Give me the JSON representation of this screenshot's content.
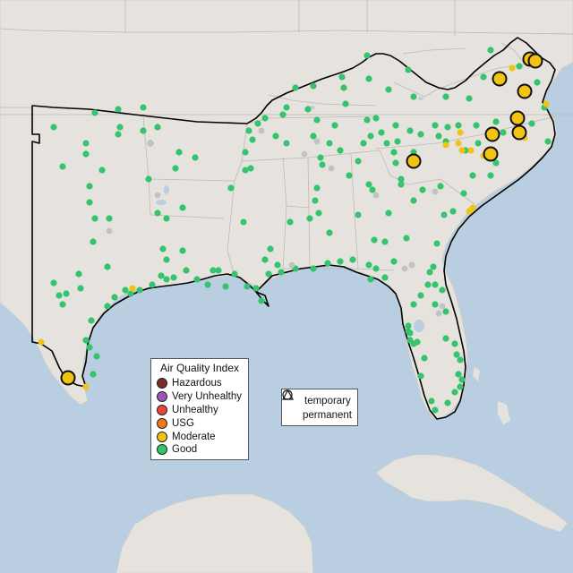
{
  "legend": {
    "title": "Air Quality Index",
    "items": [
      {
        "label": "Hazardous",
        "color": "#7e2d26"
      },
      {
        "label": "Very Unhealthy",
        "color": "#9a57b8"
      },
      {
        "label": "Unhealthy",
        "color": "#e8453b"
      },
      {
        "label": "USG",
        "color": "#ec7a1c"
      },
      {
        "label": "Moderate",
        "color": "#f2c314"
      },
      {
        "label": "Good",
        "color": "#34c46e"
      }
    ]
  },
  "monitor_type_legend": {
    "items": [
      {
        "label": "temporary",
        "shape": "circle-icon"
      },
      {
        "label": "permanent",
        "shape": "triangle-icon"
      }
    ]
  },
  "colors": {
    "ocean": "#b9cfe1",
    "land": "#e6e3df",
    "no_data": "#c2c2c2"
  }
}
